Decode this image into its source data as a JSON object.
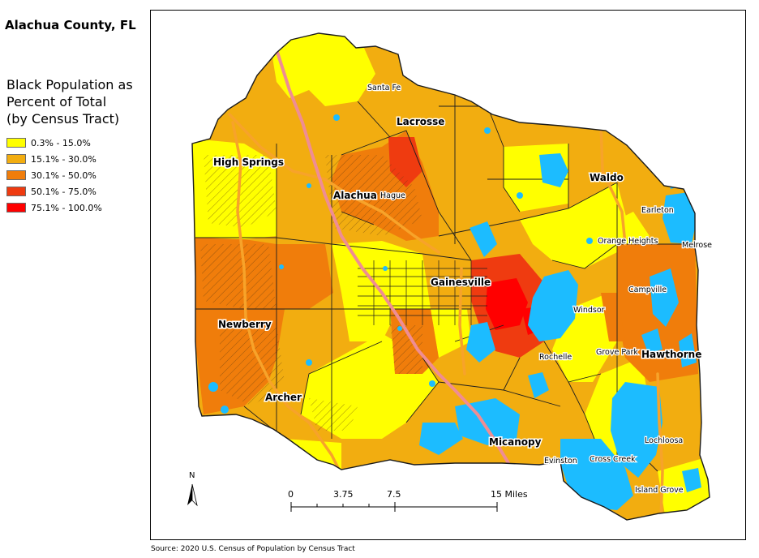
{
  "title": "Alachua County, FL",
  "legend": {
    "title_lines": [
      "Black Population as",
      "Percent of Total",
      "(by Census Tract)"
    ],
    "items": [
      {
        "label": "0.3% - 15.0%",
        "color": "#ffff00"
      },
      {
        "label": "15.1% - 30.0%",
        "color": "#f2ad10"
      },
      {
        "label": "30.1% - 50.0%",
        "color": "#f07d0b"
      },
      {
        "label": "50.1% - 75.0%",
        "color": "#ef3b10"
      },
      {
        "label": "75.1% - 100.0%",
        "color": "#ff0000"
      }
    ]
  },
  "colors": {
    "water": "#1cbcff",
    "highway": "#f7a32a",
    "interstate": "#ef8d93",
    "roads": "#2a2a2a",
    "background": "#ffffff"
  },
  "cities_major": [
    "High Springs",
    "Alachua",
    "Lacrosse",
    "Waldo",
    "Gainesville",
    "Newberry",
    "Archer",
    "Hawthorne",
    "Micanopy"
  ],
  "cities_minor": [
    "Santa Fe",
    "Hague",
    "Earleton",
    "Orange Heights",
    "Melrose",
    "Campville",
    "Windsor",
    "Grove Park",
    "Rochelle",
    "Lochloosa",
    "Evinston",
    "Cross Creek",
    "Island Grove"
  ],
  "scale_bar": {
    "labels": [
      "0",
      "3.75",
      "7.5",
      "15 Miles"
    ]
  },
  "north_arrow": {
    "label": "N"
  },
  "source": "Source:  2020 U.S. Census of Population by Census Tract"
}
